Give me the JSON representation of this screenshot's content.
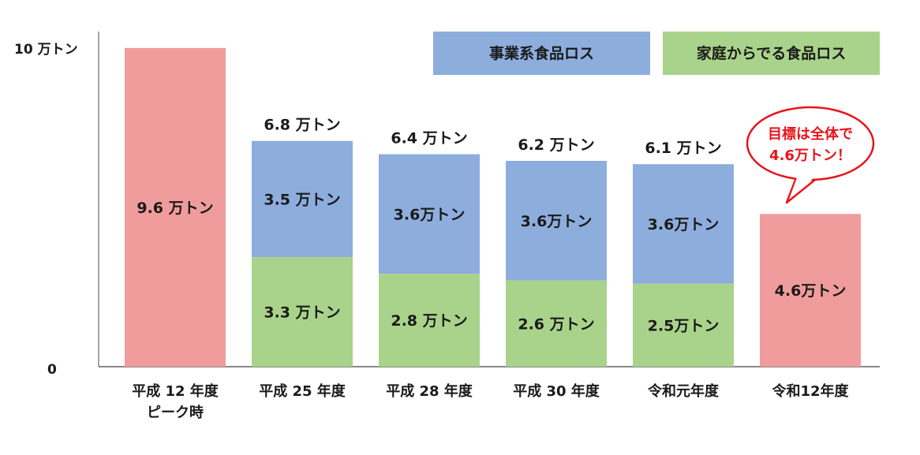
{
  "chart_data": {
    "type": "bar",
    "stacked": true,
    "y_axis_ticks": [
      "10 万トン",
      "0"
    ],
    "ylim": [
      0,
      10
    ],
    "grid": false,
    "legend_position": "top-right",
    "colors": {
      "business": "#8daddd",
      "household": "#a9d38a",
      "single": "#f19c9c",
      "axis": "#888888",
      "callout_border": "#e8141b",
      "callout_text": "#e8141b"
    },
    "series": [
      {
        "name": "事業系食品ロス",
        "key": "business"
      },
      {
        "name": "家庭からでる食品ロス",
        "key": "household"
      }
    ],
    "categories": [
      {
        "label_lines": [
          "平成 12 年度",
          "ピーク時"
        ],
        "kind": "single",
        "total": 9.6,
        "total_label": "9.6 万トン"
      },
      {
        "label_lines": [
          "平成 25 年度"
        ],
        "kind": "stacked",
        "business": 3.5,
        "business_label": "3.5 万トン",
        "household": 3.3,
        "household_label": "3.3 万トン",
        "total": 6.8,
        "total_label": "6.8 万トン"
      },
      {
        "label_lines": [
          "平成 28 年度"
        ],
        "kind": "stacked",
        "business": 3.6,
        "business_label": "3.6万トン",
        "household": 2.8,
        "household_label": "2.8 万トン",
        "total": 6.4,
        "total_label": "6.4 万トン"
      },
      {
        "label_lines": [
          "平成 30 年度"
        ],
        "kind": "stacked",
        "business": 3.6,
        "business_label": "3.6万トン",
        "household": 2.6,
        "household_label": "2.6 万トン",
        "total": 6.2,
        "total_label": "6.2 万トン"
      },
      {
        "label_lines": [
          "令和元年度"
        ],
        "kind": "stacked",
        "business": 3.6,
        "business_label": "3.6万トン",
        "household": 2.5,
        "household_label": "2.5万トン",
        "total": 6.1,
        "total_label": "6.1 万トン"
      },
      {
        "label_lines": [
          "令和12年度"
        ],
        "kind": "single",
        "total": 4.6,
        "total_label": "4.6万トン"
      }
    ],
    "callout": {
      "lines": [
        "目標は全体で",
        "4.6万トン！"
      ],
      "category_index": 5
    }
  }
}
